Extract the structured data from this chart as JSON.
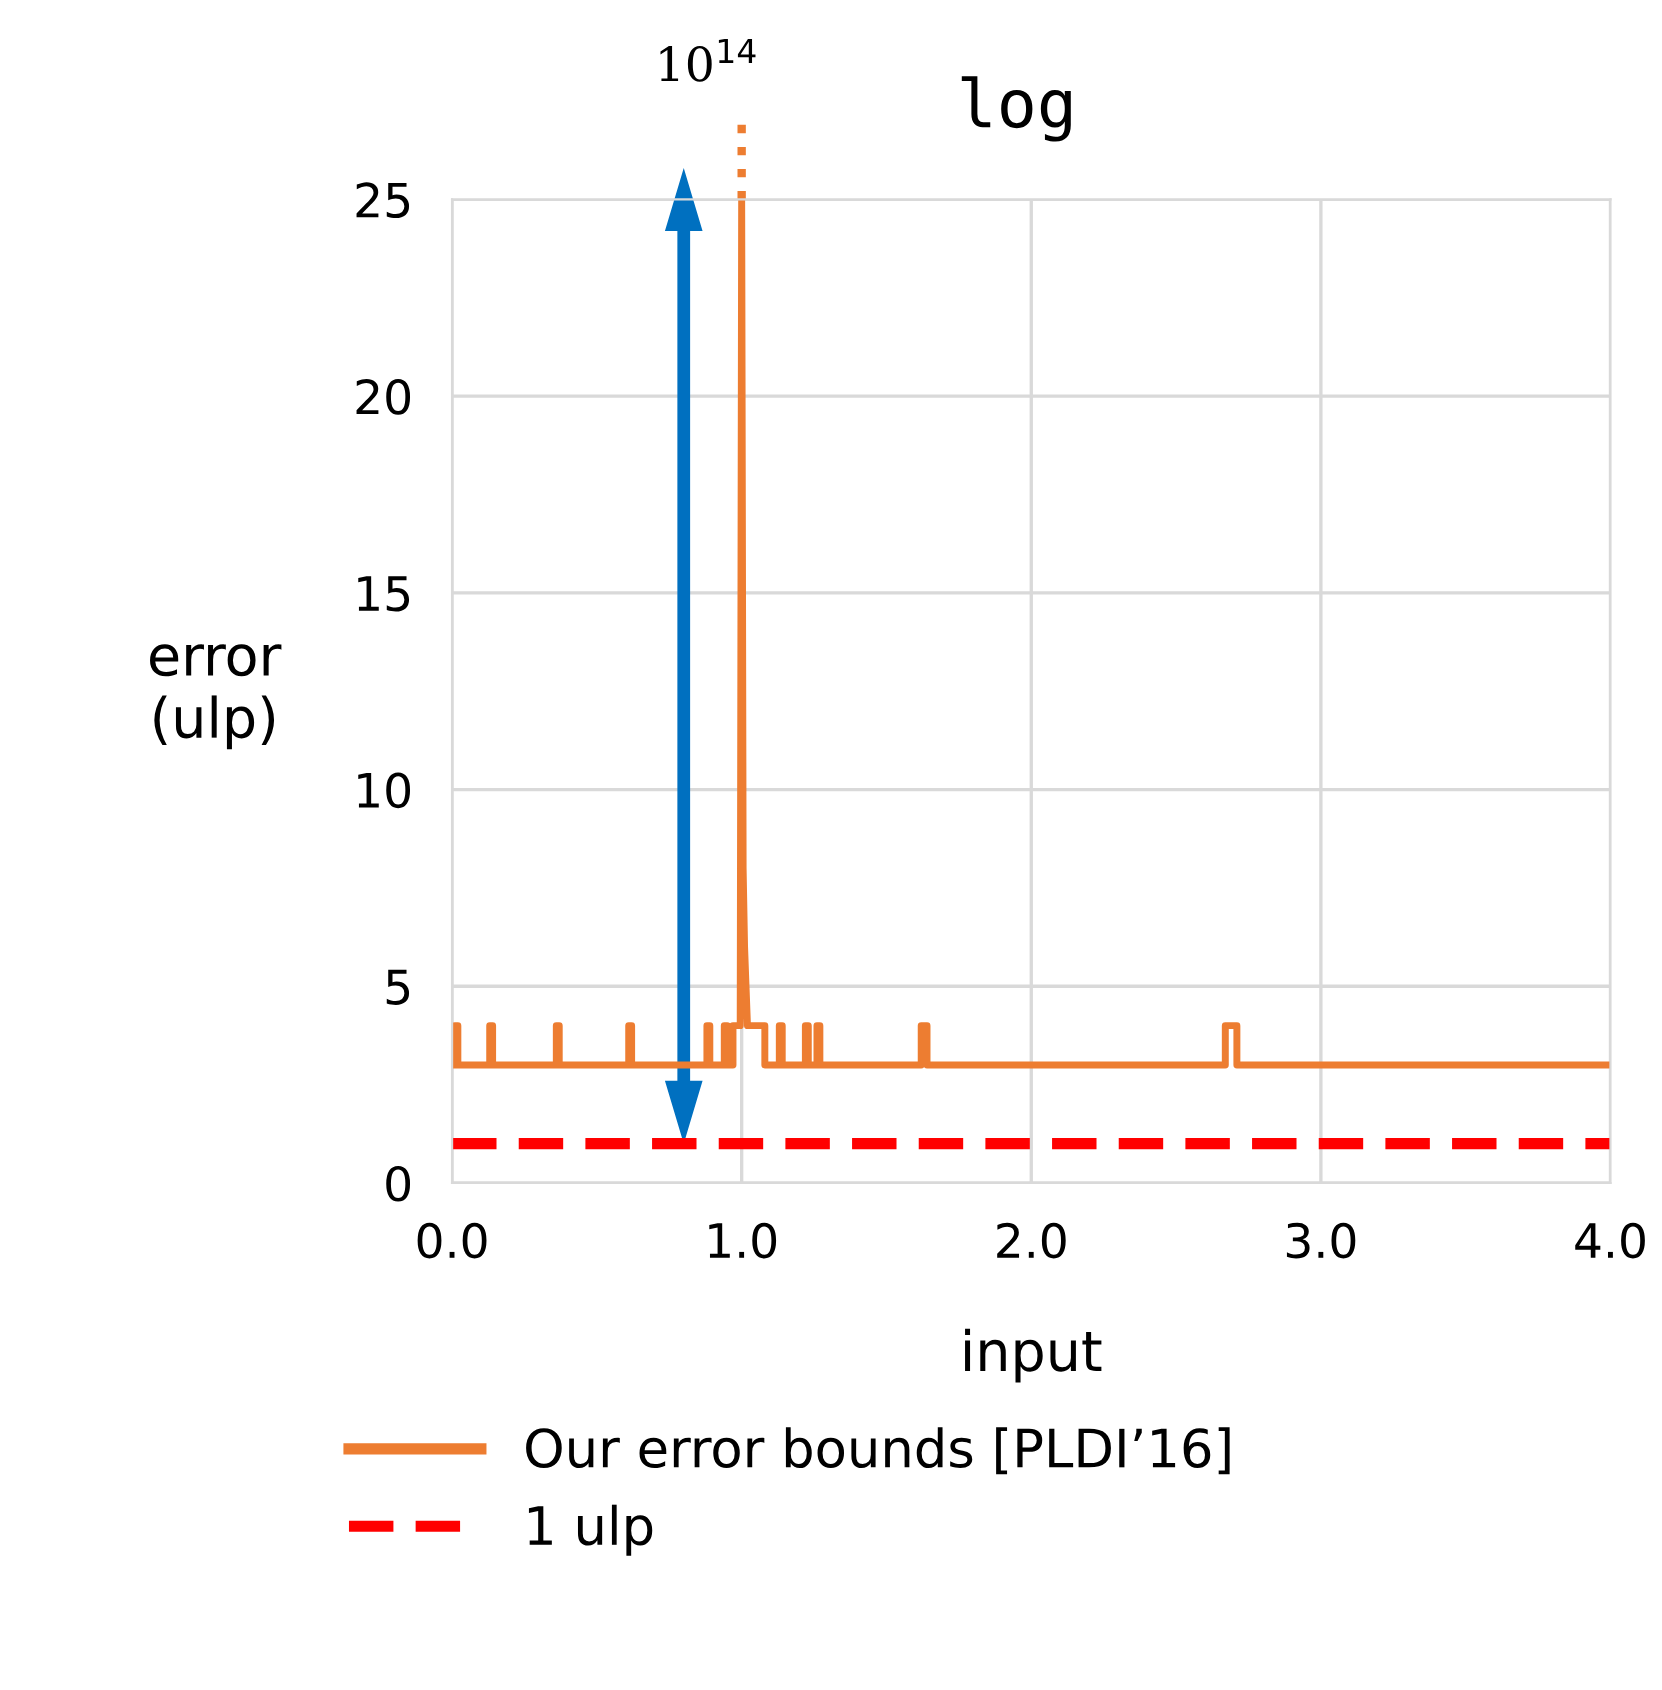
{
  "chart_data": {
    "type": "line",
    "xlabel": "input",
    "ylabel": "error\n(ulp)",
    "xlim": [
      0,
      4
    ],
    "ylim": [
      0,
      25
    ],
    "xticks": [
      {
        "value": 0,
        "label": "0.0"
      },
      {
        "value": 1,
        "label": "1.0"
      },
      {
        "value": 2,
        "label": "2.0"
      },
      {
        "value": 3,
        "label": "3.0"
      },
      {
        "value": 4,
        "label": "4.0"
      }
    ],
    "yticks": [
      0,
      5,
      10,
      15,
      20,
      25
    ],
    "grid": true,
    "legend": "bottom",
    "line_style": "solid",
    "series": [
      {
        "name": "Our error bounds [PLDI’16]",
        "color": "#ed7d31",
        "x": [
          0.0,
          0.01,
          0.01,
          0.02,
          0.02,
          0.13,
          0.13,
          0.14,
          0.14,
          0.36,
          0.36,
          0.37,
          0.37,
          0.61,
          0.61,
          0.62,
          0.62,
          0.88,
          0.88,
          0.89,
          0.89,
          0.94,
          0.94,
          0.95,
          0.95,
          0.97,
          0.97,
          0.995,
          1.0,
          1.005,
          1.01,
          1.015,
          1.02,
          1.025,
          1.03,
          1.08,
          1.08,
          1.13,
          1.13,
          1.14,
          1.14,
          1.22,
          1.22,
          1.23,
          1.23,
          1.26,
          1.26,
          1.27,
          1.27,
          1.62,
          1.62,
          1.64,
          1.64,
          2.67,
          2.67,
          2.71,
          2.71,
          4.0
        ],
        "values": [
          3,
          3,
          4,
          4,
          3,
          3,
          4,
          4,
          3,
          3,
          4,
          4,
          3,
          3,
          4,
          4,
          3,
          3,
          4,
          4,
          3,
          3,
          4,
          4,
          3,
          3,
          4,
          4,
          25,
          8,
          6,
          5,
          4,
          4,
          4,
          4,
          3,
          3,
          4,
          4,
          3,
          3,
          4,
          4,
          3,
          3,
          4,
          4,
          3,
          3,
          4,
          4,
          3,
          3,
          4,
          4,
          3,
          3
        ]
      }
    ],
    "ref_lines": [
      {
        "axis": "y",
        "value": 1,
        "label": "1 ulp",
        "color": "#ff0000",
        "line_style": "dashed"
      }
    ],
    "annotations": [
      {
        "text": "10$^{14}$",
        "x": 1.0,
        "y": 25
      },
      "log"
    ]
  }
}
